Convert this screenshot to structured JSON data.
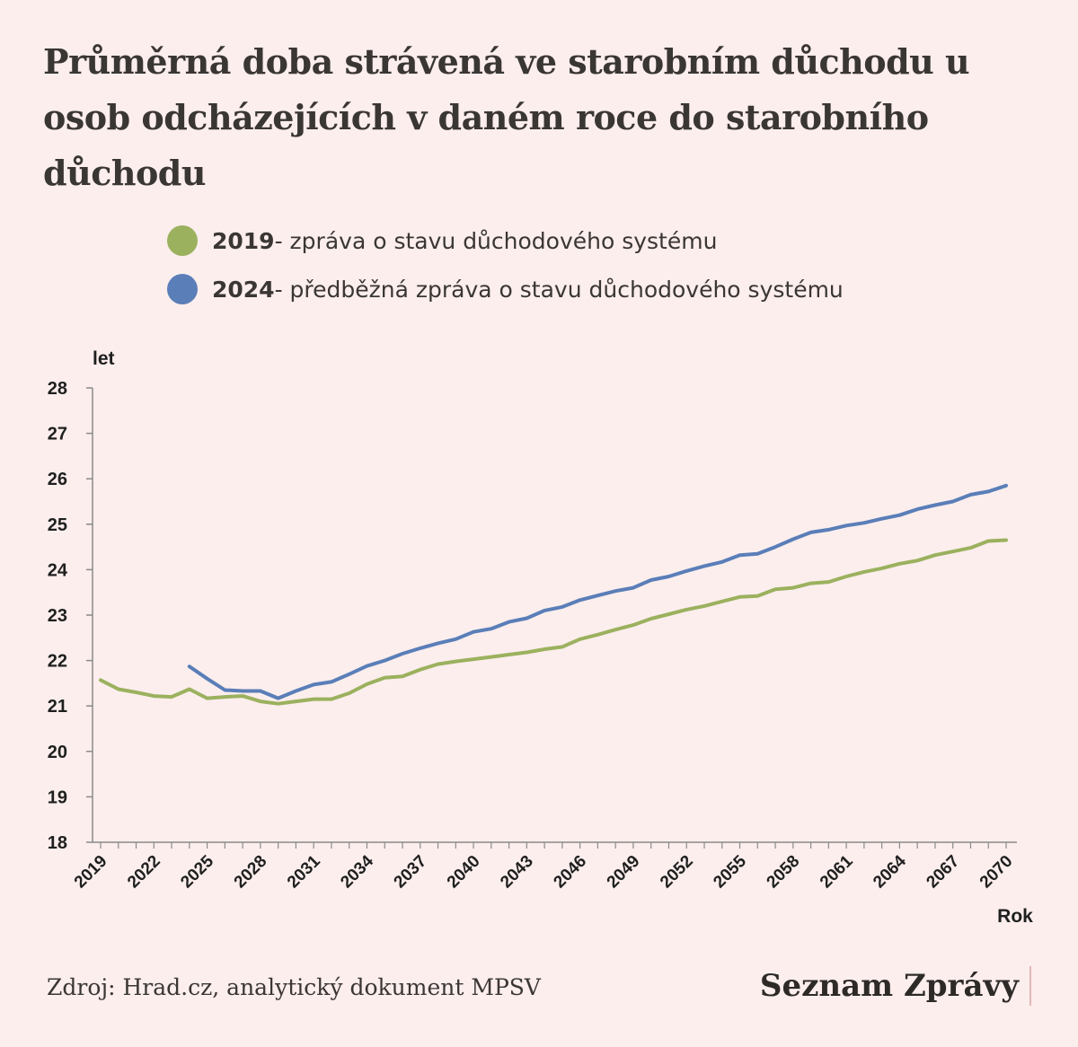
{
  "title": "Průměrná doba strávená ve starobním důchodu u osob odcházejících v daném roce do starobního důchodu",
  "legend": [
    {
      "year": "2019",
      "text": " - zpráva o stavu důchodového systému",
      "color": "#9bb15e"
    },
    {
      "year": "2024",
      "text": " - předběžná zpráva o stavu důchodového systému",
      "color": "#5a7eb8"
    }
  ],
  "source": "Zdroj: Hrad.cz, analytický dokument MPSV",
  "brand": "Seznam Zprávy",
  "chart_data": {
    "type": "line",
    "ylabel": "let",
    "xlabel": "Rok",
    "ylim": [
      18,
      28
    ],
    "xlim": [
      2019,
      2070
    ],
    "yticks": [
      18,
      19,
      20,
      21,
      22,
      23,
      24,
      25,
      26,
      27,
      28
    ],
    "xticks": [
      2019,
      2022,
      2025,
      2028,
      2031,
      2034,
      2037,
      2040,
      2043,
      2046,
      2049,
      2052,
      2055,
      2058,
      2061,
      2064,
      2067,
      2070
    ],
    "series": [
      {
        "name": "2019",
        "color": "#9bb15e",
        "x": [
          2019,
          2020,
          2021,
          2022,
          2023,
          2024,
          2025,
          2026,
          2027,
          2028,
          2029,
          2030,
          2031,
          2032,
          2033,
          2034,
          2035,
          2036,
          2037,
          2038,
          2039,
          2040,
          2041,
          2042,
          2043,
          2044,
          2045,
          2046,
          2047,
          2048,
          2049,
          2050,
          2051,
          2052,
          2053,
          2054,
          2055,
          2056,
          2057,
          2058,
          2059,
          2060,
          2061,
          2062,
          2063,
          2064,
          2065,
          2066,
          2067,
          2068,
          2069,
          2070
        ],
        "values": [
          21.57,
          21.37,
          21.3,
          21.22,
          21.2,
          21.37,
          21.17,
          21.2,
          21.22,
          21.1,
          21.05,
          21.1,
          21.15,
          21.15,
          21.28,
          21.48,
          21.62,
          21.65,
          21.8,
          21.92,
          21.98,
          22.03,
          22.08,
          22.13,
          22.18,
          22.25,
          22.3,
          22.47,
          22.57,
          22.68,
          22.78,
          22.92,
          23.02,
          23.12,
          23.2,
          23.3,
          23.4,
          23.42,
          23.57,
          23.6,
          23.7,
          23.73,
          23.85,
          23.95,
          24.03,
          24.13,
          24.2,
          24.32,
          24.4,
          24.48,
          24.63,
          24.65
        ]
      },
      {
        "name": "2024",
        "color": "#5a7eb8",
        "x": [
          2024,
          2025,
          2026,
          2027,
          2028,
          2029,
          2030,
          2031,
          2032,
          2033,
          2034,
          2035,
          2036,
          2037,
          2038,
          2039,
          2040,
          2041,
          2042,
          2043,
          2044,
          2045,
          2046,
          2047,
          2048,
          2049,
          2050,
          2051,
          2052,
          2053,
          2054,
          2055,
          2056,
          2057,
          2058,
          2059,
          2060,
          2061,
          2062,
          2063,
          2064,
          2065,
          2066,
          2067,
          2068,
          2069,
          2070
        ],
        "values": [
          21.87,
          21.6,
          21.35,
          21.33,
          21.33,
          21.17,
          21.33,
          21.47,
          21.53,
          21.7,
          21.88,
          22.0,
          22.15,
          22.27,
          22.38,
          22.47,
          22.63,
          22.7,
          22.85,
          22.93,
          23.1,
          23.18,
          23.33,
          23.43,
          23.53,
          23.6,
          23.77,
          23.85,
          23.97,
          24.08,
          24.17,
          24.32,
          24.35,
          24.5,
          24.67,
          24.82,
          24.88,
          24.97,
          25.03,
          25.12,
          25.2,
          25.33,
          25.42,
          25.5,
          25.65,
          25.72,
          25.85
        ]
      }
    ]
  }
}
